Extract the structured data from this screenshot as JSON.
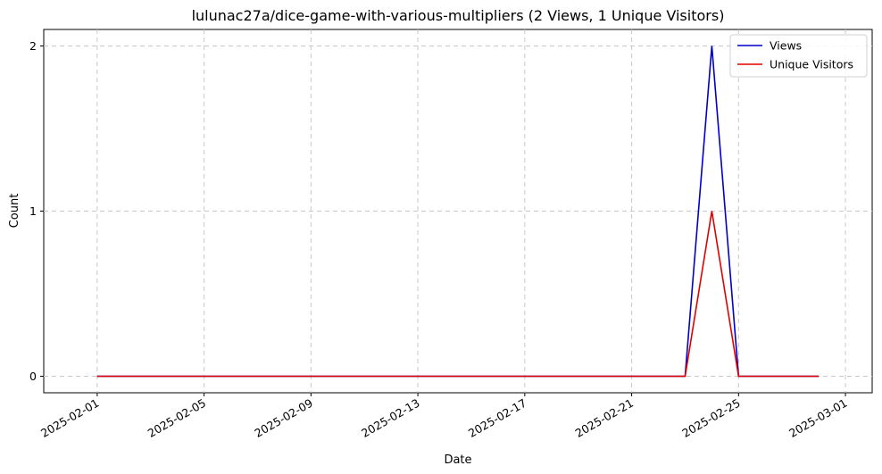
{
  "chart_data": {
    "type": "line",
    "title": "lulunac27a/dice-game-with-various-multipliers (2 Views, 1 Unique Visitors)",
    "xlabel": "Date",
    "ylabel": "Count",
    "x_type": "date",
    "xlim": [
      "2025-01-30",
      "2025-03-02"
    ],
    "ylim": [
      -0.1,
      2.1
    ],
    "x_ticks": [
      "2025-02-01",
      "2025-02-05",
      "2025-02-09",
      "2025-02-13",
      "2025-02-17",
      "2025-02-21",
      "2025-02-25",
      "2025-03-01"
    ],
    "y_ticks": [
      0,
      1,
      2
    ],
    "grid": true,
    "legend_position": "top-right",
    "series": [
      {
        "name": "Views",
        "color": "#0000cc",
        "points": [
          {
            "date": "2025-02-01",
            "value": 0
          },
          {
            "date": "2025-02-23",
            "value": 0
          },
          {
            "date": "2025-02-24",
            "value": 2
          },
          {
            "date": "2025-02-25",
            "value": 0
          },
          {
            "date": "2025-02-28",
            "value": 0
          }
        ]
      },
      {
        "name": "Unique Visitors",
        "color": "#e00000",
        "points": [
          {
            "date": "2025-02-01",
            "value": 0
          },
          {
            "date": "2025-02-23",
            "value": 0
          },
          {
            "date": "2025-02-24",
            "value": 1
          },
          {
            "date": "2025-02-25",
            "value": 0
          },
          {
            "date": "2025-02-28",
            "value": 0
          }
        ]
      }
    ]
  }
}
